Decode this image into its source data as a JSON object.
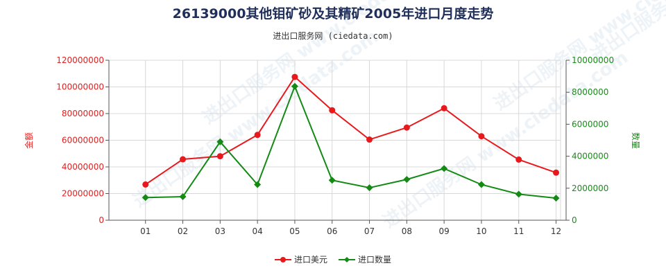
{
  "chart_data": {
    "type": "line",
    "title": "26139000其他钼矿砂及其精矿2005年进口月度走势",
    "subtitle": "进出口服务网 (ciedata.com)",
    "watermark": "进出口服务网 www.ciedata.com",
    "categories": [
      "01",
      "02",
      "03",
      "04",
      "05",
      "06",
      "07",
      "08",
      "09",
      "10",
      "11",
      "12"
    ],
    "y_left": {
      "label": "金额",
      "range": [
        0,
        120000000
      ],
      "ticks": [
        "0",
        "20000000",
        "40000000",
        "60000000",
        "80000000",
        "100000000",
        "120000000"
      ],
      "color": "#e02020"
    },
    "y_right": {
      "label": "数量",
      "range": [
        0,
        10000000
      ],
      "ticks": [
        "0",
        "2000000",
        "4000000",
        "6000000",
        "8000000",
        "10000000"
      ],
      "color": "#1a8a1a"
    },
    "series": [
      {
        "name": "进口美元",
        "axis": "left",
        "color": "#e8191c",
        "values": [
          26800000,
          45700000,
          48000000,
          64000000,
          107500000,
          82500000,
          60500000,
          69500000,
          84000000,
          63000000,
          45500000,
          35700000
        ]
      },
      {
        "name": "进口数量",
        "axis": "right",
        "color": "#138a13",
        "values": [
          1420000,
          1470000,
          4900000,
          2230000,
          8370000,
          2500000,
          2030000,
          2550000,
          3230000,
          2230000,
          1630000,
          1380000
        ]
      }
    ],
    "grid": true,
    "legend_position": "bottom"
  }
}
